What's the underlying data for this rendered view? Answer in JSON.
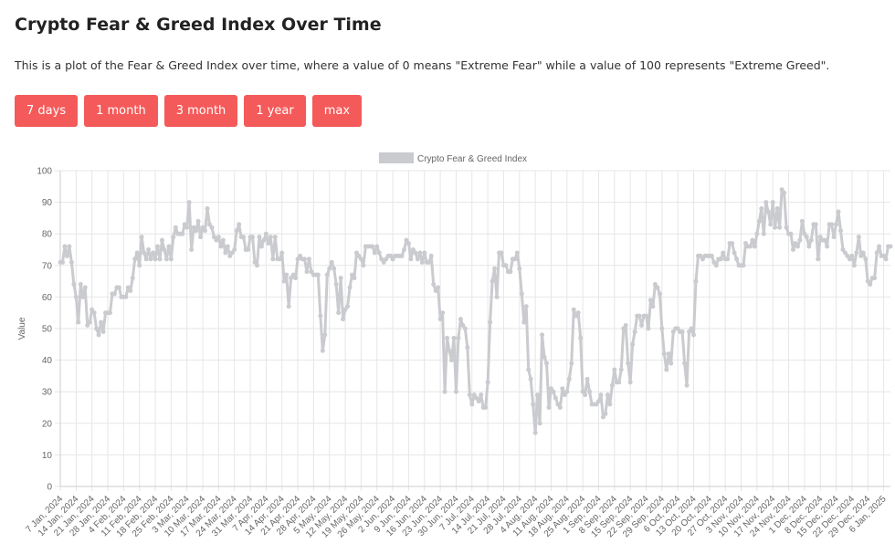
{
  "header": {
    "title": "Crypto Fear & Greed Index Over Time",
    "description": "This is a plot of the Fear & Greed Index over time, where a value of 0 means \"Extreme Fear\" while a value of 100 represents \"Extreme Greed\"."
  },
  "buttons": [
    "7 days",
    "1 month",
    "3 month",
    "1 year",
    "max"
  ],
  "chart_data": {
    "type": "line",
    "y_label": "Value",
    "ylim": [
      0,
      100
    ],
    "yticks": [
      0,
      10,
      20,
      30,
      40,
      50,
      60,
      70,
      80,
      90,
      100
    ],
    "grid": true,
    "legend": "top",
    "categories": [
      "7 Jan, 2024",
      null,
      null,
      null,
      null,
      null,
      null,
      "14 Jan, 2024",
      null,
      null,
      null,
      null,
      null,
      null,
      "21 Jan, 2024",
      null,
      null,
      null,
      null,
      null,
      null,
      "28 Jan, 2024",
      null,
      null,
      null,
      null,
      null,
      null,
      "4 Feb, 2024",
      null,
      null,
      null,
      null,
      null,
      null,
      "11 Feb, 2024",
      null,
      null,
      null,
      null,
      null,
      null,
      "18 Feb, 2024",
      null,
      null,
      null,
      null,
      null,
      null,
      "25 Feb, 2024",
      null,
      null,
      null,
      null,
      null,
      null,
      "3 Mar, 2024",
      null,
      null,
      null,
      null,
      null,
      null,
      "10 Mar, 2024",
      null,
      null,
      null,
      null,
      null,
      null,
      "17 Mar, 2024",
      null,
      null,
      null,
      null,
      null,
      null,
      "24 Mar, 2024",
      null,
      null,
      null,
      null,
      null,
      null,
      "31 Mar, 2024",
      null,
      null,
      null,
      null,
      null,
      null,
      "7 Apr, 2024",
      null,
      null,
      null,
      null,
      null,
      null,
      "14 Apr, 2024",
      null,
      null,
      null,
      null,
      null,
      null,
      "21 Apr, 2024",
      null,
      null,
      null,
      null,
      null,
      null,
      "28 Apr, 2024",
      null,
      null,
      null,
      null,
      null,
      null,
      "5 May, 2024",
      null,
      null,
      null,
      null,
      null,
      null,
      "12 May, 2024",
      null,
      null,
      null,
      null,
      null,
      null,
      "19 May, 2024",
      null,
      null,
      null,
      null,
      null,
      null,
      "26 May, 2024",
      null,
      null,
      null,
      null,
      null,
      null,
      "2 Jun, 2024",
      null,
      null,
      null,
      null,
      null,
      null,
      "9 Jun, 2024",
      null,
      null,
      null,
      null,
      null,
      null,
      "16 Jun, 2024",
      null,
      null,
      null,
      null,
      null,
      null,
      "23 Jun, 2024",
      null,
      null,
      null,
      null,
      null,
      null,
      "30 Jun, 2024",
      null,
      null,
      null,
      null,
      null,
      null,
      "7 Jul, 2024",
      null,
      null,
      null,
      null,
      null,
      null,
      "14 Jul, 2024",
      null,
      null,
      null,
      null,
      null,
      null,
      "21 Jul, 2024",
      null,
      null,
      null,
      null,
      null,
      null,
      "28 Jul, 2024",
      null,
      null,
      null,
      null,
      null,
      null,
      "4 Aug, 2024",
      null,
      null,
      null,
      null,
      null,
      null,
      "11 Aug, 2024",
      null,
      null,
      null,
      null,
      null,
      null,
      "18 Aug, 2024",
      null,
      null,
      null,
      null,
      null,
      null,
      "25 Aug, 2024",
      null,
      null,
      null,
      null,
      null,
      null,
      "1 Sep, 2024",
      null,
      null,
      null,
      null,
      null,
      null,
      "8 Sep, 2024",
      null,
      null,
      null,
      null,
      null,
      null,
      "15 Sep, 2024",
      null,
      null,
      null,
      null,
      null,
      null,
      "22 Sep, 2024",
      null,
      null,
      null,
      null,
      null,
      null,
      "29 Sep, 2024",
      null,
      null,
      null,
      null,
      null,
      null,
      "6 Oct, 2024",
      null,
      null,
      null,
      null,
      null,
      null,
      "13 Oct, 2024",
      null,
      null,
      null,
      null,
      null,
      null,
      "20 Oct, 2024",
      null,
      null,
      null,
      null,
      null,
      null,
      "27 Oct, 2024",
      null,
      null,
      null,
      null,
      null,
      null,
      "3 Nov, 2024",
      null,
      null,
      null,
      null,
      null,
      null,
      "10 Nov, 2024",
      null,
      null,
      null,
      null,
      null,
      null,
      "17 Nov, 2024",
      null,
      null,
      null,
      null,
      null,
      null,
      "24 Nov, 2024",
      null,
      null,
      null,
      null,
      null,
      null,
      "1 Dec, 2024",
      null,
      null,
      null,
      null,
      null,
      null,
      "8 Dec, 2024",
      null,
      null,
      null,
      null,
      null,
      null,
      "15 Dec, 2024",
      null,
      null,
      null,
      null,
      null,
      null,
      "22 Dec, 2024",
      null,
      null,
      null,
      null,
      null,
      null,
      "29 Dec, 2024",
      null,
      null,
      null,
      null,
      null,
      null,
      "6 Jan, 2025",
      null,
      null,
      null
    ],
    "series": [
      {
        "name": "Crypto Fear & Greed Index",
        "color": "#c9cbcf",
        "values": [
          71,
          71,
          76,
          73,
          76,
          71,
          64,
          60,
          52,
          64,
          60,
          63,
          51,
          52,
          56,
          55,
          50,
          48,
          52,
          49,
          55,
          55,
          55,
          61,
          61,
          63,
          63,
          60,
          60,
          60,
          63,
          62,
          66,
          72,
          74,
          70,
          79,
          74,
          72,
          75,
          72,
          74,
          72,
          76,
          72,
          78,
          75,
          72,
          76,
          72,
          79,
          82,
          80,
          80,
          80,
          83,
          82,
          90,
          75,
          82,
          81,
          84,
          79,
          82,
          81,
          88,
          83,
          82,
          79,
          78,
          79,
          76,
          78,
          74,
          76,
          73,
          74,
          75,
          81,
          83,
          79,
          79,
          75,
          75,
          79,
          79,
          71,
          70,
          79,
          76,
          78,
          80,
          77,
          79,
          72,
          79,
          72,
          72,
          74,
          65,
          67,
          57,
          66,
          67,
          66,
          72,
          73,
          72,
          72,
          68,
          72,
          68,
          67,
          67,
          67,
          54,
          43,
          48,
          67,
          69,
          71,
          69,
          64,
          55,
          66,
          53,
          56,
          57,
          63,
          67,
          66,
          74,
          73,
          72,
          70,
          76,
          76,
          76,
          76,
          74,
          76,
          74,
          72,
          71,
          72,
          73,
          73,
          72,
          73,
          73,
          73,
          73,
          75,
          78,
          77,
          72,
          75,
          74,
          72,
          74,
          71,
          74,
          71,
          71,
          73,
          64,
          62,
          63,
          53,
          55,
          30,
          47,
          43,
          40,
          47,
          30,
          47,
          53,
          51,
          50,
          44,
          29,
          26,
          29,
          28,
          27,
          29,
          25,
          25,
          33,
          52,
          65,
          69,
          60,
          74,
          74,
          70,
          70,
          68,
          68,
          72,
          72,
          74,
          69,
          61,
          52,
          57,
          37,
          34,
          26,
          17,
          29,
          20,
          48,
          41,
          39,
          25,
          31,
          30,
          28,
          26,
          25,
          31,
          29,
          30,
          34,
          39,
          56,
          54,
          55,
          47,
          30,
          29,
          34,
          30,
          26,
          26,
          26,
          27,
          29,
          22,
          23,
          29,
          26,
          32,
          37,
          33,
          33,
          37,
          50,
          51,
          39,
          33,
          45,
          49,
          54,
          54,
          51,
          54,
          54,
          50,
          59,
          57,
          64,
          63,
          61,
          50,
          42,
          37,
          42,
          39,
          49,
          50,
          50,
          49,
          49,
          39,
          32,
          49,
          50,
          48,
          65,
          73,
          73,
          72,
          73,
          73,
          73,
          73,
          71,
          70,
          72,
          72,
          74,
          72,
          72,
          77,
          77,
          74,
          72,
          70,
          70,
          70,
          77,
          76,
          76,
          78,
          76,
          80,
          84,
          88,
          80,
          90,
          87,
          83,
          90,
          82,
          88,
          82,
          94,
          93,
          82,
          80,
          80,
          75,
          77,
          76,
          78,
          84,
          80,
          79,
          76,
          78,
          83,
          83,
          72,
          79,
          78,
          78,
          76,
          83,
          83,
          79,
          83,
          87,
          81,
          75,
          74,
          73,
          72,
          73,
          70,
          74,
          79,
          73,
          74,
          72,
          65,
          64,
          66,
          66,
          74,
          76,
          73,
          73,
          72,
          76,
          76
        ]
      }
    ]
  }
}
